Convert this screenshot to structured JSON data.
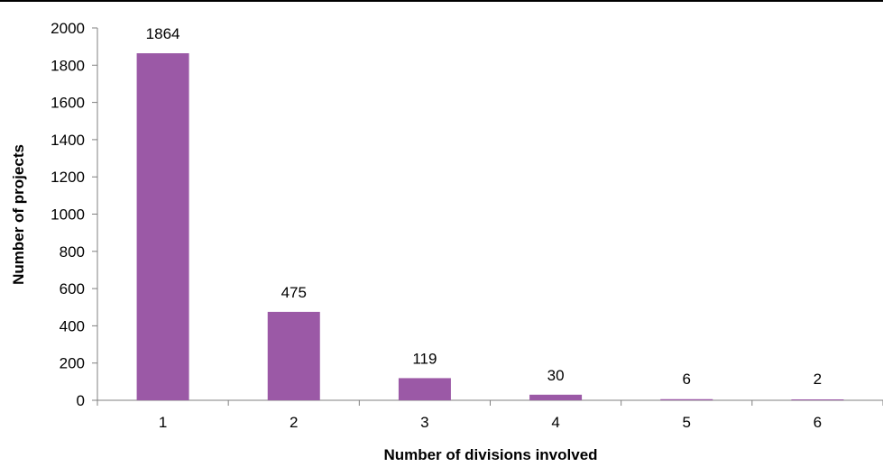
{
  "chart_data": {
    "type": "bar",
    "title": "",
    "xlabel": "Number of divisions involved",
    "ylabel": "Number of projects",
    "categories": [
      "1",
      "2",
      "3",
      "4",
      "5",
      "6"
    ],
    "values": [
      1864,
      475,
      119,
      30,
      6,
      2
    ],
    "data_labels": [
      "1864",
      "475",
      "119",
      "30",
      "6",
      "2"
    ],
    "ylim": [
      0,
      2000
    ],
    "yticks": [
      "0",
      "200",
      "400",
      "600",
      "800",
      "1000",
      "1200",
      "1400",
      "1600",
      "1800",
      "2000"
    ],
    "grid": false,
    "legend": "none",
    "bar_color": "#9b59a6",
    "axis_color": "#808080"
  }
}
